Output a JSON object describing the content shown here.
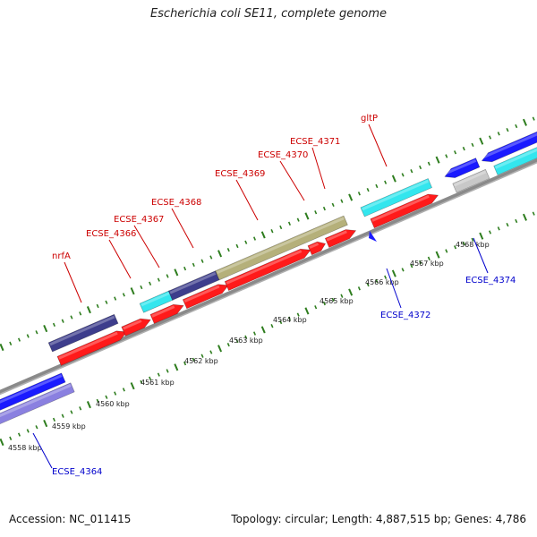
{
  "title": "Escherichia coli SE11, complete genome",
  "footer": {
    "accession": "Accession: NC_011415",
    "summary": "Topology: circular; Length: 4,887,515 bp; Genes: 4,786"
  },
  "colors": {
    "background": "#ffffff",
    "backbone": "#8c8c8c",
    "tick": "#2e7d1e",
    "forward_label": "#cc0000",
    "reverse_label": "#0000cc",
    "cds_red": "#ff1a1a",
    "cds_blue": "#1a1aff",
    "cds_navy": "#3d3d8c",
    "cds_lavender": "#8a80e0",
    "cds_cyan": "#33e6ee",
    "cds_olive": "#b5b07a",
    "cds_gray": "#c8c8c8"
  },
  "scale_labels": [
    "4558 kbp",
    "4559 kbp",
    "4560 kbp",
    "4561 kbp",
    "4562 kbp",
    "4563 kbp",
    "4564 kbp",
    "4565 kbp",
    "4566 kbp",
    "4567 kbp",
    "4568 kbp"
  ],
  "forward_gene_labels": [
    "nrfA",
    "ECSE_4366",
    "ECSE_4367",
    "ECSE_4368",
    "ECSE_4369",
    "ECSE_4370",
    "ECSE_4371",
    "gltP"
  ],
  "reverse_gene_labels": [
    "ECSE_4364",
    "ECSE_4372",
    "ECSE_4374"
  ]
}
